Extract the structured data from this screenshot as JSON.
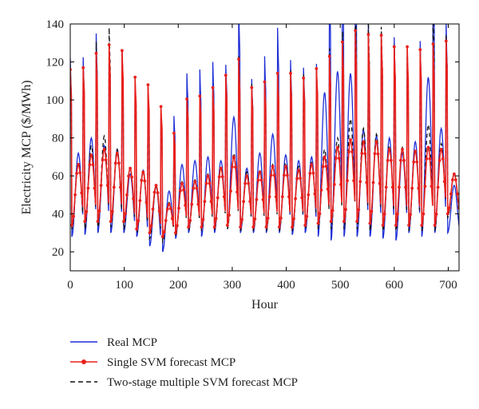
{
  "chart_data": {
    "type": "line",
    "xlabel": "Hour",
    "ylabel": "Electricity MCP ($/MWh)",
    "xlim": [
      0,
      720
    ],
    "ylim": [
      10,
      140
    ],
    "xticks": [
      0,
      100,
      200,
      300,
      400,
      500,
      600,
      700
    ],
    "yticks": [
      20,
      40,
      60,
      80,
      100,
      120,
      140
    ],
    "grid": false,
    "legend_position": "bottom-left",
    "period_hours": 24,
    "day_extrema": {
      "real": {
        "peaks": [
          72,
          80,
          76,
          74,
          61,
          63,
          55,
          52,
          66,
          68,
          70,
          68,
          91,
          64,
          72,
          82,
          71,
          68,
          70,
          104,
          115,
          114,
          84,
          81,
          80,
          72,
          78,
          112,
          85,
          55
        ],
        "troughs": [
          28,
          29,
          30,
          30,
          30,
          28,
          23,
          20,
          27,
          30,
          28,
          30,
          33,
          30,
          30,
          30,
          30,
          29,
          30,
          28,
          26,
          28,
          28,
          28,
          27,
          26,
          30,
          28,
          30,
          30
        ]
      },
      "single_svm": {
        "peaks": [
          66,
          71,
          74,
          72,
          64,
          62,
          55,
          45,
          56,
          57,
          60,
          64,
          70,
          60,
          62,
          65,
          65,
          63,
          66,
          70,
          75,
          79,
          78,
          78,
          74,
          74,
          73,
          75,
          74,
          61
        ],
        "troughs": [
          34,
          36,
          36,
          36,
          36,
          32,
          30,
          28,
          30,
          33,
          33,
          33,
          34,
          33,
          33,
          33,
          33,
          33,
          34,
          35,
          36,
          36,
          36,
          35,
          34,
          34,
          34,
          34,
          34,
          40
        ]
      },
      "two_stage_svm": {
        "peaks": [
          67,
          76,
          81,
          74,
          64,
          63,
          54,
          46,
          57,
          58,
          61,
          65,
          72,
          62,
          63,
          66,
          67,
          65,
          67,
          74,
          80,
          90,
          85,
          82,
          76,
          75,
          74,
          87,
          77,
          61
        ],
        "troughs": [
          32,
          32,
          33,
          33,
          32,
          30,
          27,
          25,
          28,
          31,
          31,
          31,
          32,
          31,
          31,
          31,
          31,
          31,
          32,
          32,
          32,
          32,
          32,
          31,
          31,
          31,
          31,
          31,
          31,
          38
        ]
      }
    },
    "series": [
      {
        "key": "real",
        "name": "Real MCP",
        "color": "#1f2fd6",
        "style": "solid"
      },
      {
        "key": "single_svm",
        "name": "Single SVM forecast MCP",
        "color": "#e8201c",
        "style": "solid-dots"
      },
      {
        "key": "two_stage_svm",
        "name": "Two-stage multiple SVM forecast MCP",
        "color": "#111111",
        "style": "dashed"
      }
    ]
  }
}
